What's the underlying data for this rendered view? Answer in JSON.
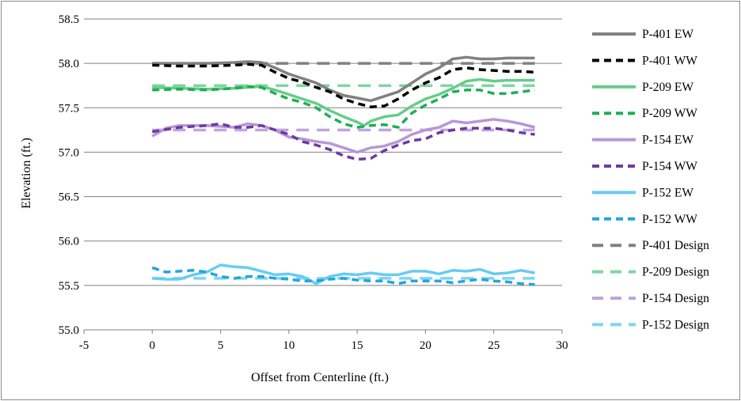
{
  "chart_data": {
    "type": "line",
    "title": "",
    "xlabel": "Offset from Centerline (ft.)",
    "ylabel": "Elevation (ft.)",
    "xlim": [
      -5,
      30
    ],
    "ylim": [
      55.0,
      58.5
    ],
    "xticks": [
      -5,
      0,
      5,
      10,
      15,
      20,
      25,
      30
    ],
    "yticks": [
      55.0,
      55.5,
      56.0,
      56.5,
      57.0,
      57.5,
      58.0,
      58.5
    ],
    "xtick_labels": [
      "-5",
      "0",
      "5",
      "10",
      "15",
      "20",
      "25",
      "30"
    ],
    "ytick_labels": [
      "55.0",
      "55.5",
      "56.0",
      "56.5",
      "57.0",
      "57.5",
      "58.0",
      "58.5"
    ],
    "grid": "horizontal",
    "legend_position": "right",
    "series": [
      {
        "name": "P-401 EW",
        "color": "#808080",
        "dash": "solid",
        "x": [
          0,
          2,
          4,
          6,
          7,
          8,
          9,
          10,
          11,
          12,
          13,
          14,
          15,
          16,
          17,
          18,
          19,
          20,
          21,
          22,
          23,
          24,
          25,
          26,
          27,
          28
        ],
        "y": [
          58.0,
          58.0,
          58.0,
          58.01,
          58.02,
          58.01,
          57.95,
          57.88,
          57.83,
          57.78,
          57.7,
          57.64,
          57.61,
          57.58,
          57.63,
          57.68,
          57.78,
          57.88,
          57.95,
          58.05,
          58.07,
          58.05,
          58.05,
          58.06,
          58.06,
          58.06
        ]
      },
      {
        "name": "P-401 WW",
        "color": "#000000",
        "dash": "dashed",
        "x": [
          0,
          2,
          4,
          6,
          7,
          8,
          9,
          10,
          11,
          12,
          13,
          14,
          15,
          16,
          17,
          18,
          19,
          20,
          21,
          22,
          23,
          24,
          25,
          26,
          27,
          28
        ],
        "y": [
          57.98,
          57.97,
          57.97,
          57.98,
          57.99,
          57.98,
          57.9,
          57.83,
          57.79,
          57.73,
          57.68,
          57.6,
          57.55,
          57.51,
          57.52,
          57.6,
          57.7,
          57.78,
          57.84,
          57.93,
          57.95,
          57.93,
          57.92,
          57.91,
          57.91,
          57.9
        ]
      },
      {
        "name": "P-209 EW",
        "color": "#66cc8a",
        "dash": "solid",
        "x": [
          0,
          2,
          4,
          6,
          8,
          9,
          10,
          11,
          12,
          13,
          14,
          15,
          15.5,
          16,
          17,
          18,
          19,
          20,
          21,
          22,
          23,
          24,
          25,
          26,
          27,
          28
        ],
        "y": [
          57.73,
          57.72,
          57.71,
          57.72,
          57.74,
          57.7,
          57.65,
          57.6,
          57.55,
          57.47,
          57.4,
          57.34,
          57.3,
          57.35,
          57.4,
          57.42,
          57.52,
          57.6,
          57.65,
          57.72,
          57.8,
          57.82,
          57.8,
          57.81,
          57.81,
          57.81
        ]
      },
      {
        "name": "P-209 WW",
        "color": "#1fae54",
        "dash": "dashed",
        "x": [
          0,
          2,
          4,
          6,
          7,
          8,
          9,
          10,
          11,
          12,
          13,
          14,
          15,
          16,
          17,
          18,
          19,
          20,
          21,
          22,
          23,
          24,
          25,
          26,
          27,
          28
        ],
        "y": [
          57.7,
          57.71,
          57.7,
          57.72,
          57.74,
          57.73,
          57.66,
          57.6,
          57.56,
          57.5,
          57.4,
          57.32,
          57.28,
          57.3,
          57.31,
          57.28,
          57.44,
          57.53,
          57.6,
          57.68,
          57.7,
          57.7,
          57.66,
          57.66,
          57.68,
          57.7
        ]
      },
      {
        "name": "P-154 EW",
        "color": "#b797d8",
        "dash": "solid",
        "x": [
          0,
          1,
          2,
          4,
          6,
          7,
          8,
          9,
          10,
          11,
          12,
          13,
          14,
          15,
          16,
          17,
          18,
          19,
          20,
          21,
          22,
          23,
          24,
          25,
          26,
          27,
          28
        ],
        "y": [
          57.18,
          57.27,
          57.3,
          57.3,
          57.28,
          57.32,
          57.3,
          57.25,
          57.17,
          57.15,
          57.12,
          57.1,
          57.05,
          57.0,
          57.05,
          57.07,
          57.12,
          57.2,
          57.25,
          57.28,
          57.35,
          57.33,
          57.35,
          57.37,
          57.35,
          57.32,
          57.28
        ]
      },
      {
        "name": "P-154 WW",
        "color": "#6e39a3",
        "dash": "dashed",
        "x": [
          0,
          2,
          4,
          5,
          6,
          7,
          8,
          9,
          10,
          11,
          12,
          13,
          14,
          15,
          16,
          17,
          18,
          19,
          20,
          21,
          22,
          23,
          24,
          25,
          26,
          27,
          28
        ],
        "y": [
          57.23,
          57.28,
          57.3,
          57.32,
          57.28,
          57.28,
          57.3,
          57.25,
          57.2,
          57.12,
          57.08,
          57.03,
          56.96,
          56.92,
          56.93,
          57.02,
          57.08,
          57.13,
          57.15,
          57.22,
          57.25,
          57.27,
          57.27,
          57.27,
          57.25,
          57.22,
          57.2
        ]
      },
      {
        "name": "P-152 EW",
        "color": "#66ccf2",
        "dash": "solid",
        "x": [
          0,
          1,
          2,
          3,
          4,
          5,
          6,
          7,
          8,
          9,
          10,
          11,
          12,
          13,
          14,
          15,
          16,
          17,
          18,
          19,
          20,
          21,
          22,
          23,
          24,
          25,
          26,
          27,
          28
        ],
        "y": [
          55.58,
          55.57,
          55.57,
          55.62,
          55.65,
          55.73,
          55.71,
          55.7,
          55.66,
          55.62,
          55.63,
          55.6,
          55.52,
          55.6,
          55.63,
          55.62,
          55.64,
          55.62,
          55.62,
          55.66,
          55.66,
          55.63,
          55.67,
          55.66,
          55.68,
          55.63,
          55.64,
          55.67,
          55.64
        ]
      },
      {
        "name": "P-152 WW",
        "color": "#1fa6e0",
        "dash": "dashed",
        "x": [
          0,
          1,
          2,
          3,
          4,
          5,
          6,
          7,
          8,
          9,
          10,
          11,
          12,
          13,
          14,
          15,
          16,
          17,
          18,
          19,
          20,
          21,
          22,
          23,
          24,
          25,
          26,
          27,
          28
        ],
        "y": [
          55.7,
          55.65,
          55.66,
          55.67,
          55.65,
          55.6,
          55.58,
          55.6,
          55.6,
          55.58,
          55.57,
          55.55,
          55.55,
          55.57,
          55.58,
          55.56,
          55.55,
          55.55,
          55.52,
          55.55,
          55.55,
          55.55,
          55.53,
          55.55,
          55.57,
          55.55,
          55.54,
          55.52,
          55.51
        ]
      },
      {
        "name": "P-401 Design",
        "color": "#808080",
        "dash": "long-dashed",
        "x": [
          0,
          28
        ],
        "y": [
          58.0,
          58.0
        ]
      },
      {
        "name": "P-209 Design",
        "color": "#80d6a0",
        "dash": "long-dashed",
        "x": [
          0,
          28
        ],
        "y": [
          57.75,
          57.75
        ]
      },
      {
        "name": "P-154 Design",
        "color": "#bfa5de",
        "dash": "long-dashed",
        "x": [
          0,
          28
        ],
        "y": [
          57.25,
          57.25
        ]
      },
      {
        "name": "P-152 Design",
        "color": "#7fd4f4",
        "dash": "long-dashed",
        "x": [
          0,
          28
        ],
        "y": [
          55.58,
          55.58
        ]
      }
    ]
  }
}
